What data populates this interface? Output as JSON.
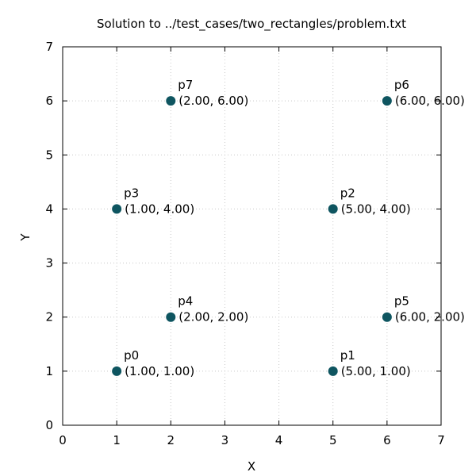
{
  "chart_data": {
    "type": "scatter",
    "title": "Solution to ../test_cases/two_rectangles/problem.txt",
    "xlabel": "X",
    "ylabel": "Y",
    "xlim": [
      0,
      7
    ],
    "ylim": [
      0,
      7
    ],
    "xticks": [
      "0",
      "1",
      "2",
      "3",
      "4",
      "5",
      "6",
      "7"
    ],
    "yticks": [
      "0",
      "1",
      "2",
      "3",
      "4",
      "5",
      "6",
      "7"
    ],
    "grid": true,
    "point_color": "#0e5560",
    "points": [
      {
        "name": "p0",
        "x": 1,
        "y": 1,
        "coord_label": "(1.00, 1.00)"
      },
      {
        "name": "p1",
        "x": 5,
        "y": 1,
        "coord_label": "(5.00, 1.00)"
      },
      {
        "name": "p2",
        "x": 5,
        "y": 4,
        "coord_label": "(5.00, 4.00)"
      },
      {
        "name": "p3",
        "x": 1,
        "y": 4,
        "coord_label": "(1.00, 4.00)"
      },
      {
        "name": "p4",
        "x": 2,
        "y": 2,
        "coord_label": "(2.00, 2.00)"
      },
      {
        "name": "p5",
        "x": 6,
        "y": 2,
        "coord_label": "(6.00, 2.00)"
      },
      {
        "name": "p6",
        "x": 6,
        "y": 6,
        "coord_label": "(6.00, 6.00)"
      },
      {
        "name": "p7",
        "x": 2,
        "y": 6,
        "coord_label": "(2.00, 6.00)"
      }
    ]
  }
}
